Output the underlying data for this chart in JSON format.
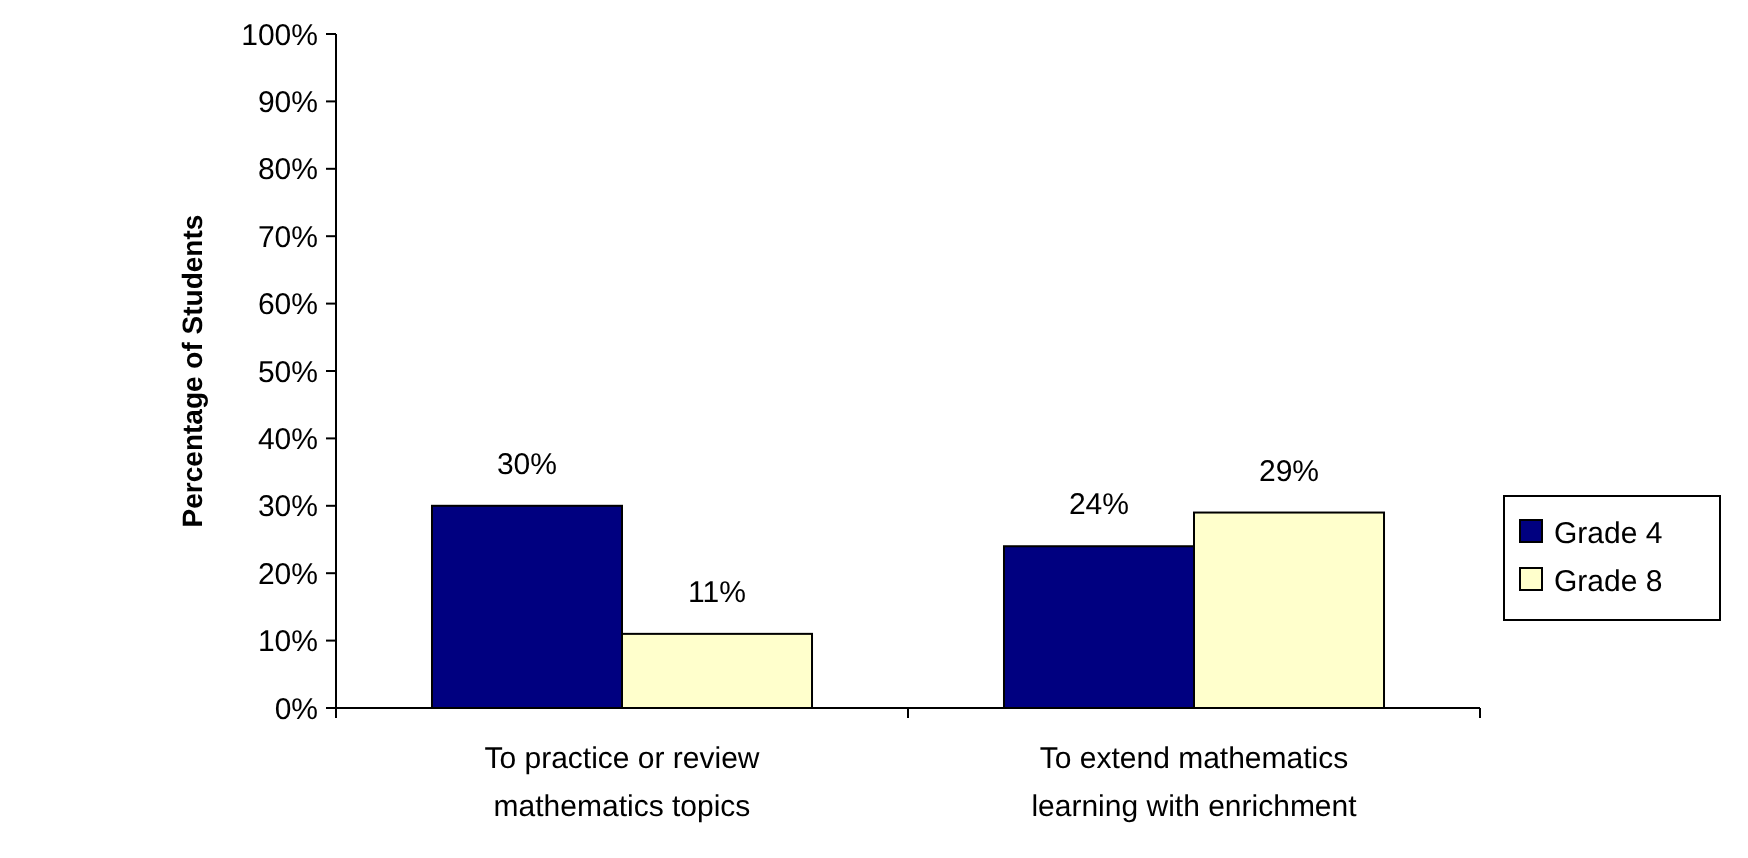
{
  "chart_data": {
    "type": "bar",
    "ylabel": "Percentage of Students",
    "categories": [
      "To practice or review mathematics topics",
      "To extend mathematics learning with enrichment"
    ],
    "series": [
      {
        "name": "Grade 4",
        "color": "#000080",
        "values": [
          30,
          24
        ],
        "value_labels": [
          "30%",
          "24%"
        ]
      },
      {
        "name": "Grade 8",
        "color": "#ffffcc",
        "values": [
          11,
          29
        ],
        "value_labels": [
          "11%",
          "29%"
        ]
      }
    ],
    "ylim": [
      0,
      100
    ],
    "yticks": [
      {
        "value": 0,
        "label": "0%"
      },
      {
        "value": 10,
        "label": "10%"
      },
      {
        "value": 20,
        "label": "20%"
      },
      {
        "value": 30,
        "label": "30%"
      },
      {
        "value": 40,
        "label": "40%"
      },
      {
        "value": 50,
        "label": "50%"
      },
      {
        "value": 60,
        "label": "60%"
      },
      {
        "value": 70,
        "label": "70%"
      },
      {
        "value": 80,
        "label": "80%"
      },
      {
        "value": 90,
        "label": "90%"
      },
      {
        "value": 100,
        "label": "100%"
      }
    ],
    "grid": false,
    "legend": "right"
  }
}
